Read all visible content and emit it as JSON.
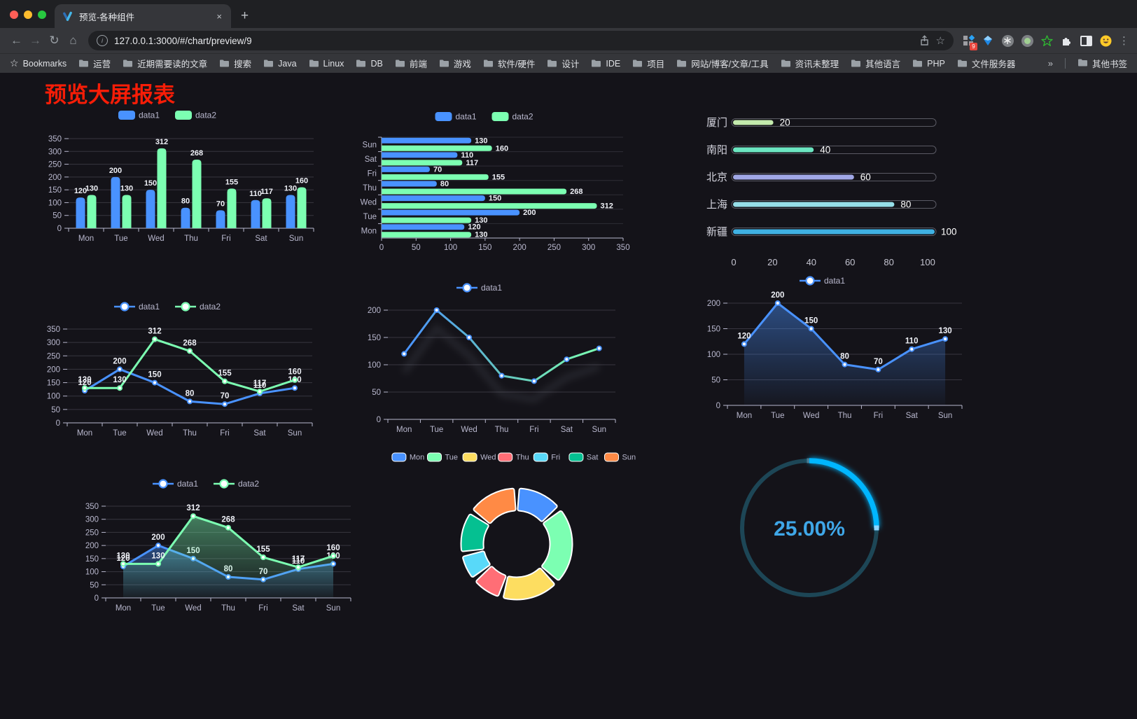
{
  "browser": {
    "tab_title": "预览-各种组件",
    "close_tab": "×",
    "new_tab": "+",
    "url": "127.0.0.1:3000/#/chart/preview/9",
    "bookmarks_label": "Bookmarks",
    "bookmarks": [
      "运营",
      "近期需要读的文章",
      "搜索",
      "Java",
      "Linux",
      "DB",
      "前端",
      "游戏",
      "软件/硬件",
      "设计",
      "IDE",
      "项目",
      "网站/博客/文章/工具",
      "资讯未整理",
      "其他语言",
      "PHP",
      "文件服务器"
    ],
    "overflow_chevron": "»",
    "other_bookmarks": "其他书签",
    "extension_badge": "9",
    "menu_dots": "⋮",
    "icons": {
      "back": "←",
      "forward": "→",
      "reload": "↻",
      "home": "⌂",
      "info": "i",
      "star": "☆",
      "bookmarks_star": "☆"
    }
  },
  "page": {
    "title": "预览大屏报表",
    "title_color": "#f71d07",
    "background": "#141319"
  },
  "chart_data": [
    {
      "kind": "barV",
      "name": "grouped-bar-chart",
      "type": "bar",
      "categories": [
        "Mon",
        "Tue",
        "Wed",
        "Thu",
        "Fri",
        "Sat",
        "Sun"
      ],
      "series": [
        {
          "name": "data1",
          "color": "#4992ff",
          "values": [
            120,
            200,
            150,
            80,
            70,
            110,
            130
          ]
        },
        {
          "name": "data2",
          "color": "#7cffb2",
          "values": [
            130,
            130,
            312,
            268,
            155,
            117,
            160
          ]
        }
      ],
      "ylim": [
        0,
        350
      ],
      "ystep": 50,
      "legend": [
        "data1",
        "data2"
      ],
      "labels": true
    },
    {
      "kind": "barH",
      "name": "horizontal-bar-chart",
      "type": "bar",
      "categories": [
        "Mon",
        "Tue",
        "Wed",
        "Thu",
        "Fri",
        "Sat",
        "Sun"
      ],
      "series": [
        {
          "name": "data1",
          "color": "#4992ff",
          "values": [
            120,
            200,
            150,
            80,
            70,
            110,
            130
          ]
        },
        {
          "name": "data2",
          "color": "#7cffb2",
          "values": [
            130,
            130,
            312,
            268,
            155,
            117,
            160
          ]
        }
      ],
      "xlim": [
        0,
        350
      ],
      "xstep": 50,
      "legend": [
        "data1",
        "data2"
      ],
      "labels": true
    },
    {
      "kind": "progress",
      "name": "city-progress-bars",
      "type": "bar",
      "items": [
        {
          "label": "厦门",
          "value": 20,
          "color": "#c4ebad"
        },
        {
          "label": "南阳",
          "value": 40,
          "color": "#6be6c1"
        },
        {
          "label": "北京",
          "value": 60,
          "color": "#a0a7e6"
        },
        {
          "label": "上海",
          "value": 80,
          "color": "#96dee8"
        },
        {
          "label": "新疆",
          "value": 100,
          "color": "#3fb1e3"
        }
      ],
      "max": 100,
      "ticks": [
        0,
        20,
        40,
        60,
        80,
        100
      ]
    },
    {
      "kind": "line",
      "name": "dual-line-chart",
      "type": "line",
      "categories": [
        "Mon",
        "Tue",
        "Wed",
        "Thu",
        "Fri",
        "Sat",
        "Sun"
      ],
      "series": [
        {
          "name": "data1",
          "color": "#4992ff",
          "values": [
            120,
            200,
            150,
            80,
            70,
            110,
            130
          ]
        },
        {
          "name": "data2",
          "color": "#7cffb2",
          "values": [
            130,
            130,
            312,
            268,
            155,
            117,
            160
          ]
        }
      ],
      "ylim": [
        0,
        350
      ],
      "ystep": 50,
      "legend": [
        "data1",
        "data2"
      ],
      "labels": true
    },
    {
      "kind": "line",
      "name": "gradient-line-chart",
      "type": "line",
      "categories": [
        "Mon",
        "Tue",
        "Wed",
        "Thu",
        "Fri",
        "Sat",
        "Sun"
      ],
      "series": [
        {
          "name": "data1",
          "colors": [
            "#4992ff",
            "#63c4c0",
            "#7cffb2"
          ],
          "color": "#4992ff",
          "values": [
            120,
            200,
            150,
            80,
            70,
            110,
            130
          ]
        }
      ],
      "ylim": [
        0,
        200
      ],
      "ystep": 50,
      "legend": [
        "data1"
      ],
      "labels": false,
      "shadow": true
    },
    {
      "kind": "line",
      "name": "area-line-chart",
      "type": "area",
      "categories": [
        "Mon",
        "Tue",
        "Wed",
        "Thu",
        "Fri",
        "Sat",
        "Sun"
      ],
      "series": [
        {
          "name": "data1",
          "color": "#4992ff",
          "values": [
            120,
            200,
            150,
            80,
            70,
            110,
            130
          ],
          "area": true
        }
      ],
      "ylim": [
        0,
        200
      ],
      "ystep": 50,
      "legend": [
        "data1"
      ],
      "labels": true
    },
    {
      "kind": "line",
      "name": "dual-area-line-chart",
      "type": "area",
      "categories": [
        "Mon",
        "Tue",
        "Wed",
        "Thu",
        "Fri",
        "Sat",
        "Sun"
      ],
      "series": [
        {
          "name": "data1",
          "color": "#4992ff",
          "values": [
            120,
            200,
            150,
            80,
            70,
            110,
            130
          ],
          "area": true
        },
        {
          "name": "data2",
          "color": "#7cffb2",
          "values": [
            130,
            130,
            312,
            268,
            155,
            117,
            160
          ],
          "area": true
        }
      ],
      "ylim": [
        0,
        350
      ],
      "ystep": 50,
      "legend": [
        "data1",
        "data2"
      ],
      "labels": true
    },
    {
      "kind": "donut",
      "name": "donut-chart",
      "type": "pie",
      "items": [
        {
          "name": "Mon",
          "value": 120,
          "color": "#4992ff"
        },
        {
          "name": "Tue",
          "value": 200,
          "color": "#7cffb2"
        },
        {
          "name": "Wed",
          "value": 150,
          "color": "#fddd60"
        },
        {
          "name": "Thu",
          "value": 80,
          "color": "#ff6e76"
        },
        {
          "name": "Fri",
          "value": 70,
          "color": "#58d9f9"
        },
        {
          "name": "Sat",
          "value": 110,
          "color": "#05c091"
        },
        {
          "name": "Sun",
          "value": 130,
          "color": "#ff8a45"
        }
      ]
    },
    {
      "kind": "gauge",
      "name": "progress-gauge",
      "type": "gauge",
      "value": 25,
      "max": 100,
      "label": "25.00%",
      "ring_color": "#1d4656",
      "progress_color": "#00b6ff",
      "text_color": "#3fa7e8"
    }
  ],
  "chart_style": {
    "axis_text": "#b9b8ce",
    "value_label": "#eef0f6",
    "grid": "rgba(185,184,206,0.22)",
    "axis_line": "#b9b8ce"
  }
}
